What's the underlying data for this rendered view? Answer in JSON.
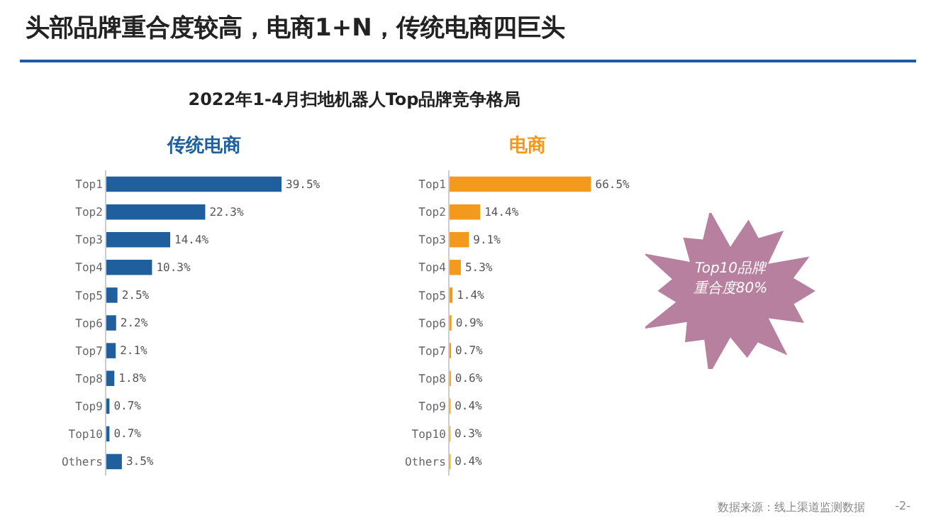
{
  "chart_data": [
    {
      "type": "other",
      "title": "头部品牌重合度较高，电商1+N，传统电商四巨头",
      "subtitle": "2022年1-4月扫地机器人Top品牌竞争格局",
      "annotations": [
        "Top10品牌重合度80%",
        "数据来源：线上渠道监测数据",
        "-2-"
      ]
    },
    {
      "type": "bar",
      "orientation": "horizontal",
      "title": "传统电商",
      "categories": [
        "Top1",
        "Top2",
        "Top3",
        "Top4",
        "Top5",
        "Top6",
        "Top7",
        "Top8",
        "Top9",
        "Top10",
        "Others"
      ],
      "series": [
        {
          "color": "#1f5f9e",
          "values": [
            39.5,
            22.3,
            14.4,
            10.3,
            2.5,
            2.2,
            2.1,
            1.8,
            0.7,
            0.7,
            3.5
          ],
          "value_labels": [
            "39.5%",
            "22.3%",
            "14.4%",
            "10.3%",
            "2.5%",
            "2.2%",
            "2.1%",
            "1.8%",
            "0.7%",
            "0.7%",
            "3.5%"
          ]
        }
      ]
    },
    {
      "type": "bar",
      "orientation": "horizontal",
      "title": "电商",
      "categories": [
        "Top1",
        "Top2",
        "Top3",
        "Top4",
        "Top5",
        "Top6",
        "Top7",
        "Top8",
        "Top9",
        "Top10",
        "Others"
      ],
      "series": [
        {
          "color": "#f39a1e",
          "values": [
            66.5,
            14.4,
            9.1,
            5.3,
            1.4,
            0.9,
            0.7,
            0.6,
            0.4,
            0.3,
            0.4
          ],
          "value_labels": [
            "66.5%",
            "14.4%",
            "9.1%",
            "5.3%",
            "1.4%",
            "0.9%",
            "0.7%",
            "0.6%",
            "0.4%",
            "0.3%",
            "0.4%"
          ]
        }
      ]
    }
  ]
}
